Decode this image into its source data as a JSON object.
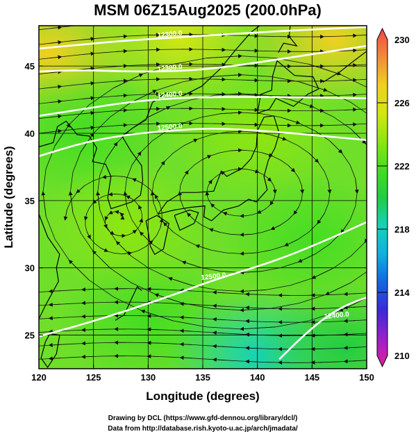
{
  "chart_data": {
    "type": "heatmap",
    "title": "MSM 06Z15Aug2025 (200.0hPa)",
    "xlabel": "Longitude (degrees)",
    "ylabel": "Latitude  (degrees)",
    "xlim": [
      120,
      150
    ],
    "ylim": [
      22.5,
      48
    ],
    "x_ticks": [
      "120",
      "125",
      "130",
      "135",
      "140",
      "145",
      "150"
    ],
    "y_ticks": [
      "25",
      "30",
      "35",
      "40",
      "45"
    ],
    "x_tick_values": [
      120,
      125,
      130,
      135,
      140,
      145,
      150
    ],
    "y_tick_values": [
      25,
      30,
      35,
      40,
      45
    ],
    "grid": true,
    "colorbar": {
      "min": 210,
      "max": 230,
      "tick_labels": [
        "210",
        "214",
        "218",
        "222",
        "226",
        "230"
      ],
      "tick_values": [
        210,
        214,
        218,
        222,
        226,
        230
      ],
      "colors": [
        "#e020a0",
        "#9a20c8",
        "#3a2ad8",
        "#1565e0",
        "#10b0e0",
        "#14d2b8",
        "#22cc44",
        "#44dd22",
        "#8ee610",
        "#d2e614",
        "#f0d020",
        "#f08a3a",
        "#f04848"
      ]
    },
    "contours": [
      {
        "label": "12300.0",
        "points": [
          [
            120,
            46.3
          ],
          [
            124,
            46.6
          ],
          [
            128,
            46.9
          ],
          [
            132,
            47.1
          ],
          [
            136,
            47.3
          ],
          [
            142,
            47.6
          ],
          [
            150,
            47.9
          ]
        ]
      },
      {
        "label": "12300.0",
        "points": [
          [
            120,
            44.6
          ],
          [
            124,
            44.7
          ],
          [
            128,
            44.6
          ],
          [
            132,
            44.6
          ],
          [
            136,
            44.8
          ],
          [
            142,
            45.5
          ],
          [
            150,
            46.5
          ]
        ]
      },
      {
        "label": "12400.0",
        "points": [
          [
            120,
            41.3
          ],
          [
            124,
            41.8
          ],
          [
            128,
            42.3
          ],
          [
            132,
            42.6
          ],
          [
            136,
            42.7
          ],
          [
            142,
            42.7
          ],
          [
            150,
            42.6
          ]
        ]
      },
      {
        "label": "12500.0",
        "points": [
          [
            120,
            38.3
          ],
          [
            124,
            39.3
          ],
          [
            128,
            39.9
          ],
          [
            132,
            40.2
          ],
          [
            136,
            40.4
          ],
          [
            142,
            40.1
          ],
          [
            150,
            39.5
          ]
        ]
      },
      {
        "label": "12500.0",
        "points": [
          [
            120,
            24.9
          ],
          [
            124,
            25.8
          ],
          [
            128,
            26.8
          ],
          [
            132,
            27.9
          ],
          [
            136,
            29.1
          ],
          [
            142,
            30.6
          ],
          [
            147,
            32.3
          ],
          [
            150,
            33.4
          ]
        ]
      },
      {
        "label": "12400.0",
        "points": [
          [
            142,
            23.2
          ],
          [
            144,
            24.8
          ],
          [
            146,
            26.2
          ],
          [
            148,
            27.2
          ],
          [
            150,
            27.8
          ]
        ]
      }
    ],
    "vortex_center": {
      "lon": 127.3,
      "lat": 33.6
    },
    "anticyclone_center": {
      "lon": 138.5,
      "lat": 35.6
    },
    "temperature_field": [
      {
        "lon": 121,
        "lat": 46,
        "value": 226
      },
      {
        "lon": 133,
        "lat": 47,
        "value": 225
      },
      {
        "lon": 147,
        "lat": 47,
        "value": 226
      },
      {
        "lon": 124,
        "lat": 40,
        "value": 221
      },
      {
        "lon": 140,
        "lat": 40,
        "value": 223
      },
      {
        "lon": 128,
        "lat": 33,
        "value": 223
      },
      {
        "lon": 145,
        "lat": 32,
        "value": 222
      },
      {
        "lon": 130,
        "lat": 26,
        "value": 221
      },
      {
        "lon": 140,
        "lat": 23.5,
        "value": 219
      },
      {
        "lon": 148,
        "lat": 24,
        "value": 220
      }
    ]
  },
  "credits": {
    "line1": "Drawing by DCL (https://www.gfd-dennou.org/library/dcl/)",
    "line2": "Data from http://database.rish.kyoto-u.ac.jp/arch/jmadata/"
  }
}
